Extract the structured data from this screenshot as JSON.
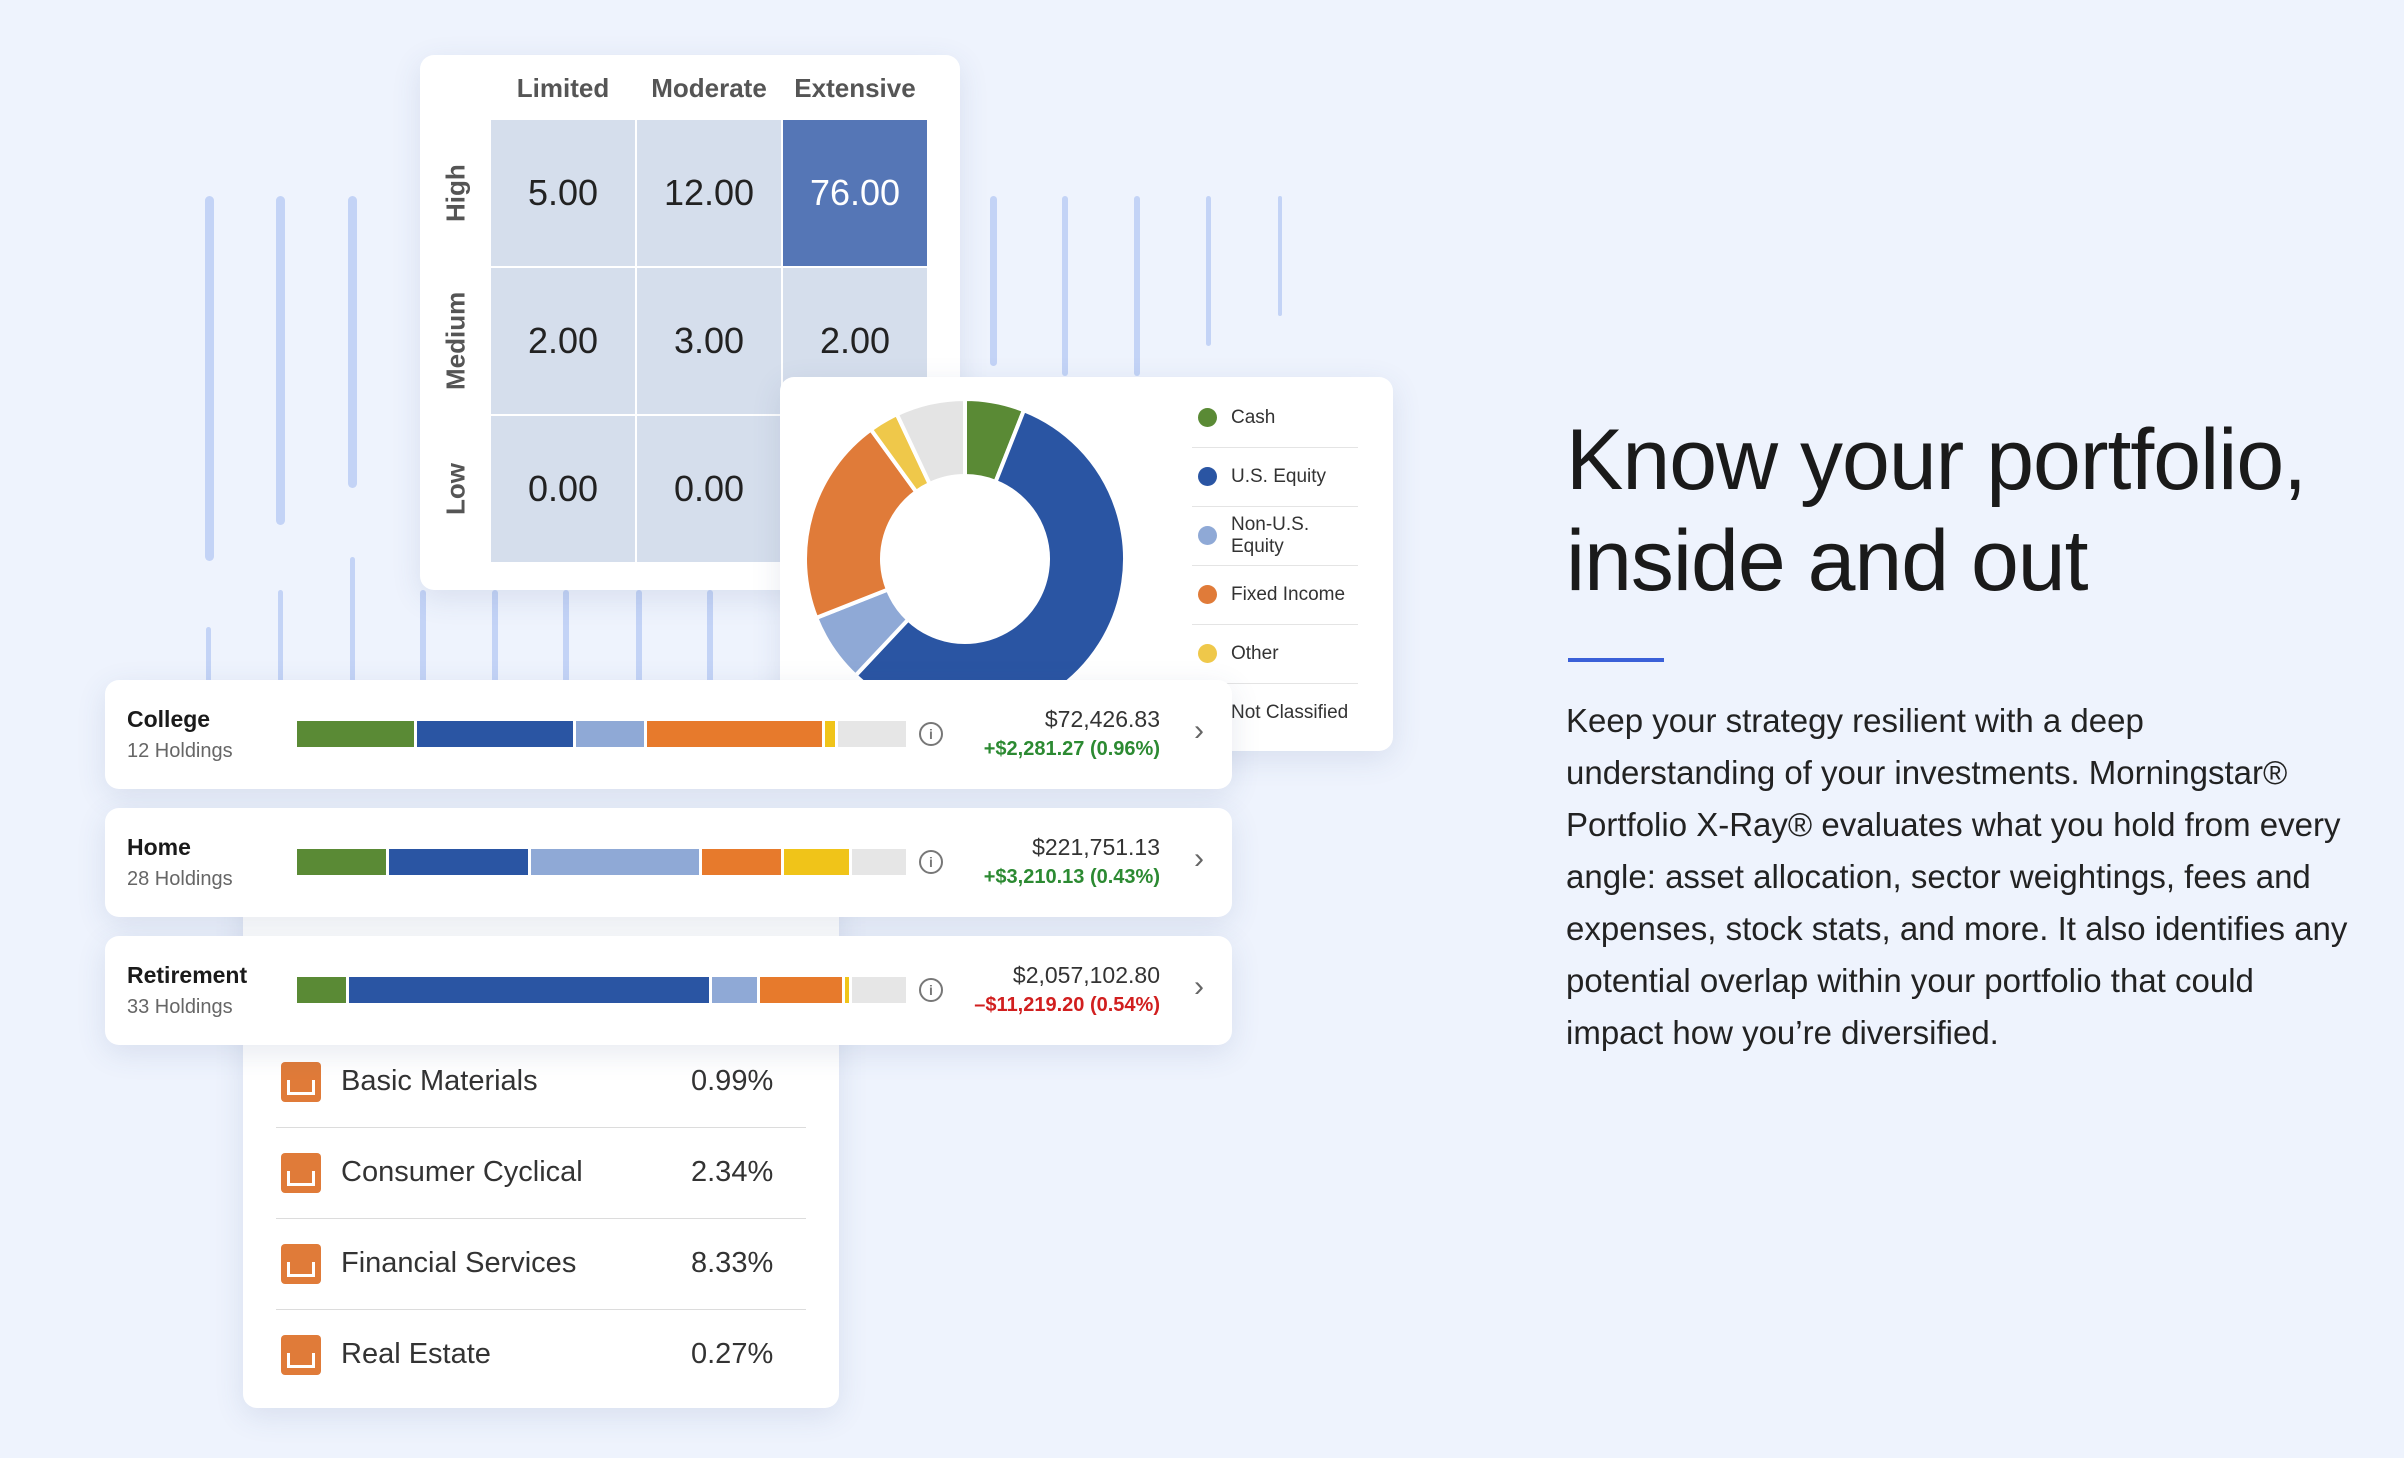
{
  "matrix": {
    "columns": [
      "Limited",
      "Moderate",
      "Extensive"
    ],
    "rows": [
      {
        "label": "High",
        "values": [
          "5.00",
          "12.00",
          "76.00"
        ]
      },
      {
        "label": "Medium",
        "values": [
          "2.00",
          "3.00",
          "2.00"
        ]
      },
      {
        "label": "Low",
        "values": [
          "0.00",
          "0.00",
          ""
        ]
      }
    ]
  },
  "allocation": {
    "legend": [
      {
        "label": "Cash",
        "color": "#5a8a35"
      },
      {
        "label": "U.S. Equity",
        "color": "#2a55a3"
      },
      {
        "label": "Non-U.S. Equity",
        "color": "#8fa9d6"
      },
      {
        "label": "Fixed Income",
        "color": "#e07b39"
      },
      {
        "label": "Other",
        "color": "#efc84a"
      },
      {
        "label": "Not Classified",
        "color": "#e4e4e4"
      }
    ],
    "percentages": [
      6,
      56,
      7,
      21,
      3,
      7
    ]
  },
  "accounts": [
    {
      "name": "College",
      "holdings": "12 Holdings",
      "value": "$72,426.83",
      "change": "+$2,281.27 (0.96%)",
      "direction": "pos",
      "bar": [
        12,
        16,
        7,
        18,
        1,
        7
      ]
    },
    {
      "name": "Home",
      "holdings": "28 Holdings",
      "value": "$221,751.13",
      "change": "+$3,210.13 (0.43%)",
      "direction": "pos",
      "bar": [
        9,
        14,
        17,
        8,
        6.5,
        5.5
      ]
    },
    {
      "name": "Retirement",
      "holdings": "33 Holdings",
      "value": "$2,057,102.80",
      "change": "–$11,219.20 (0.54%)",
      "direction": "neg",
      "bar": [
        5,
        37,
        4.6,
        8.4,
        0.5,
        5.5
      ]
    }
  ],
  "sectors": [
    {
      "label": "Basic Materials",
      "value": "0.99%"
    },
    {
      "label": "Consumer Cyclical",
      "value": "2.34%"
    },
    {
      "label": "Financial Services",
      "value": "8.33%"
    },
    {
      "label": "Real Estate",
      "value": "0.27%"
    }
  ],
  "copy": {
    "headline_line1": "Know your portfolio,",
    "headline_line2": "inside and out",
    "body": "Keep your strategy resilient with a deep understanding of your investments. Morningstar® Portfolio X-Ray® evaluates what you hold from every angle: asset allocation, sector weightings, fees and expenses, stock stats, and more. It also identifies any potential overlap within your portfolio that could impact how you’re diversified."
  }
}
